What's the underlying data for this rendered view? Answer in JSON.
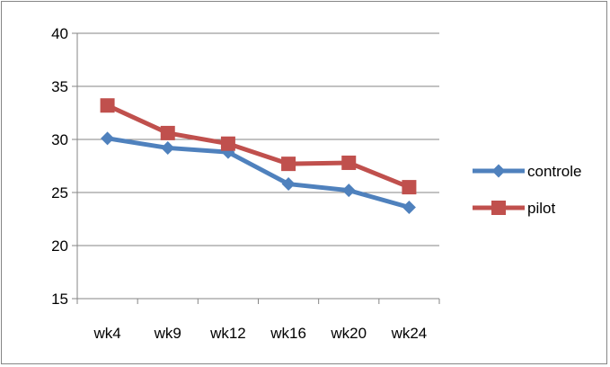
{
  "chart_data": {
    "type": "line",
    "categories": [
      "wk4",
      "wk9",
      "wk12",
      "wk16",
      "wk20",
      "wk24"
    ],
    "series": [
      {
        "name": "controle",
        "values": [
          30.1,
          29.2,
          28.8,
          25.8,
          25.2,
          23.6
        ],
        "color": "#4F81BD",
        "marker": "diamond"
      },
      {
        "name": "pilot",
        "values": [
          33.2,
          30.6,
          29.6,
          27.7,
          27.8,
          25.5
        ],
        "color": "#C0504D",
        "marker": "square"
      }
    ],
    "y_ticks": [
      "15",
      "20",
      "25",
      "30",
      "35",
      "40"
    ],
    "ylim": [
      15,
      40
    ],
    "grid": true,
    "legend": "right"
  }
}
